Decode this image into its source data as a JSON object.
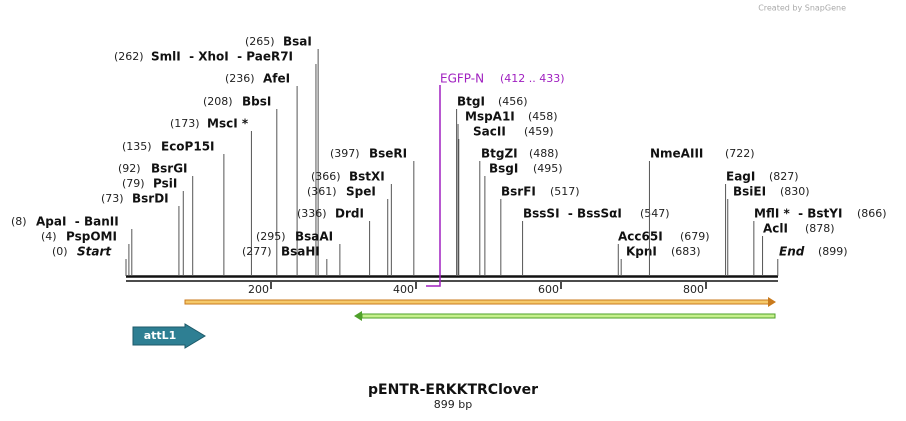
{
  "header": {
    "credit": "Created by SnapGene"
  },
  "title": "pENTR-ERKKTRClover",
  "length": "899 bp",
  "ruler": [
    200,
    400,
    600,
    800
  ],
  "primer": {
    "name": "EGFP-N",
    "range": "(412 .. 433)"
  },
  "feature": {
    "name": "attL1"
  },
  "sites": [
    {
      "name": "BsaI",
      "position": "(265)"
    },
    {
      "name": "SmlI  - XhoI  - PaeR7I",
      "position": "(262)"
    },
    {
      "name": "AfeI",
      "position": "(236)"
    },
    {
      "name": "BbsI",
      "position": "(208)"
    },
    {
      "name": "MscI *",
      "position": "(173)"
    },
    {
      "name": "EcoP15I",
      "position": "(135)"
    },
    {
      "name": "BsrGI",
      "position": "(92)"
    },
    {
      "name": "PsiI",
      "position": "(79)"
    },
    {
      "name": "BsrDI",
      "position": "(73)"
    },
    {
      "name": "ApaI  - BanII",
      "position": "(8)"
    },
    {
      "name": "PspOMI",
      "position": "(4)"
    },
    {
      "name": "Start",
      "position": "(0)"
    },
    {
      "name": "BseRI",
      "position": "(397)"
    },
    {
      "name": "BstXI",
      "position": "(366)"
    },
    {
      "name": "SpeI",
      "position": "(361)"
    },
    {
      "name": "DrdI",
      "position": "(336)"
    },
    {
      "name": "BsaAI",
      "position": "(295)"
    },
    {
      "name": "BsaHI",
      "position": "(277)"
    },
    {
      "name": "BtgI",
      "position": "(456)"
    },
    {
      "name": "MspA1I",
      "position": "(458)"
    },
    {
      "name": "SacII",
      "position": "(459)"
    },
    {
      "name": "BtgZI",
      "position": "(488)"
    },
    {
      "name": "BsgI",
      "position": "(495)"
    },
    {
      "name": "BsrFI",
      "position": "(517)"
    },
    {
      "name": "BssSI  - BssSαI",
      "position": "(547)"
    },
    {
      "name": "Acc65I",
      "position": "(679)"
    },
    {
      "name": "KpnI",
      "position": "(683)"
    },
    {
      "name": "NmeAIII",
      "position": "(722)"
    },
    {
      "name": "EagI",
      "position": "(827)"
    },
    {
      "name": "BsiEI",
      "position": "(830)"
    },
    {
      "name": "MflI *  - BstYI",
      "position": "(866)"
    },
    {
      "name": "AclI",
      "position": "(878)"
    },
    {
      "name": "End",
      "position": "(899)"
    }
  ]
}
